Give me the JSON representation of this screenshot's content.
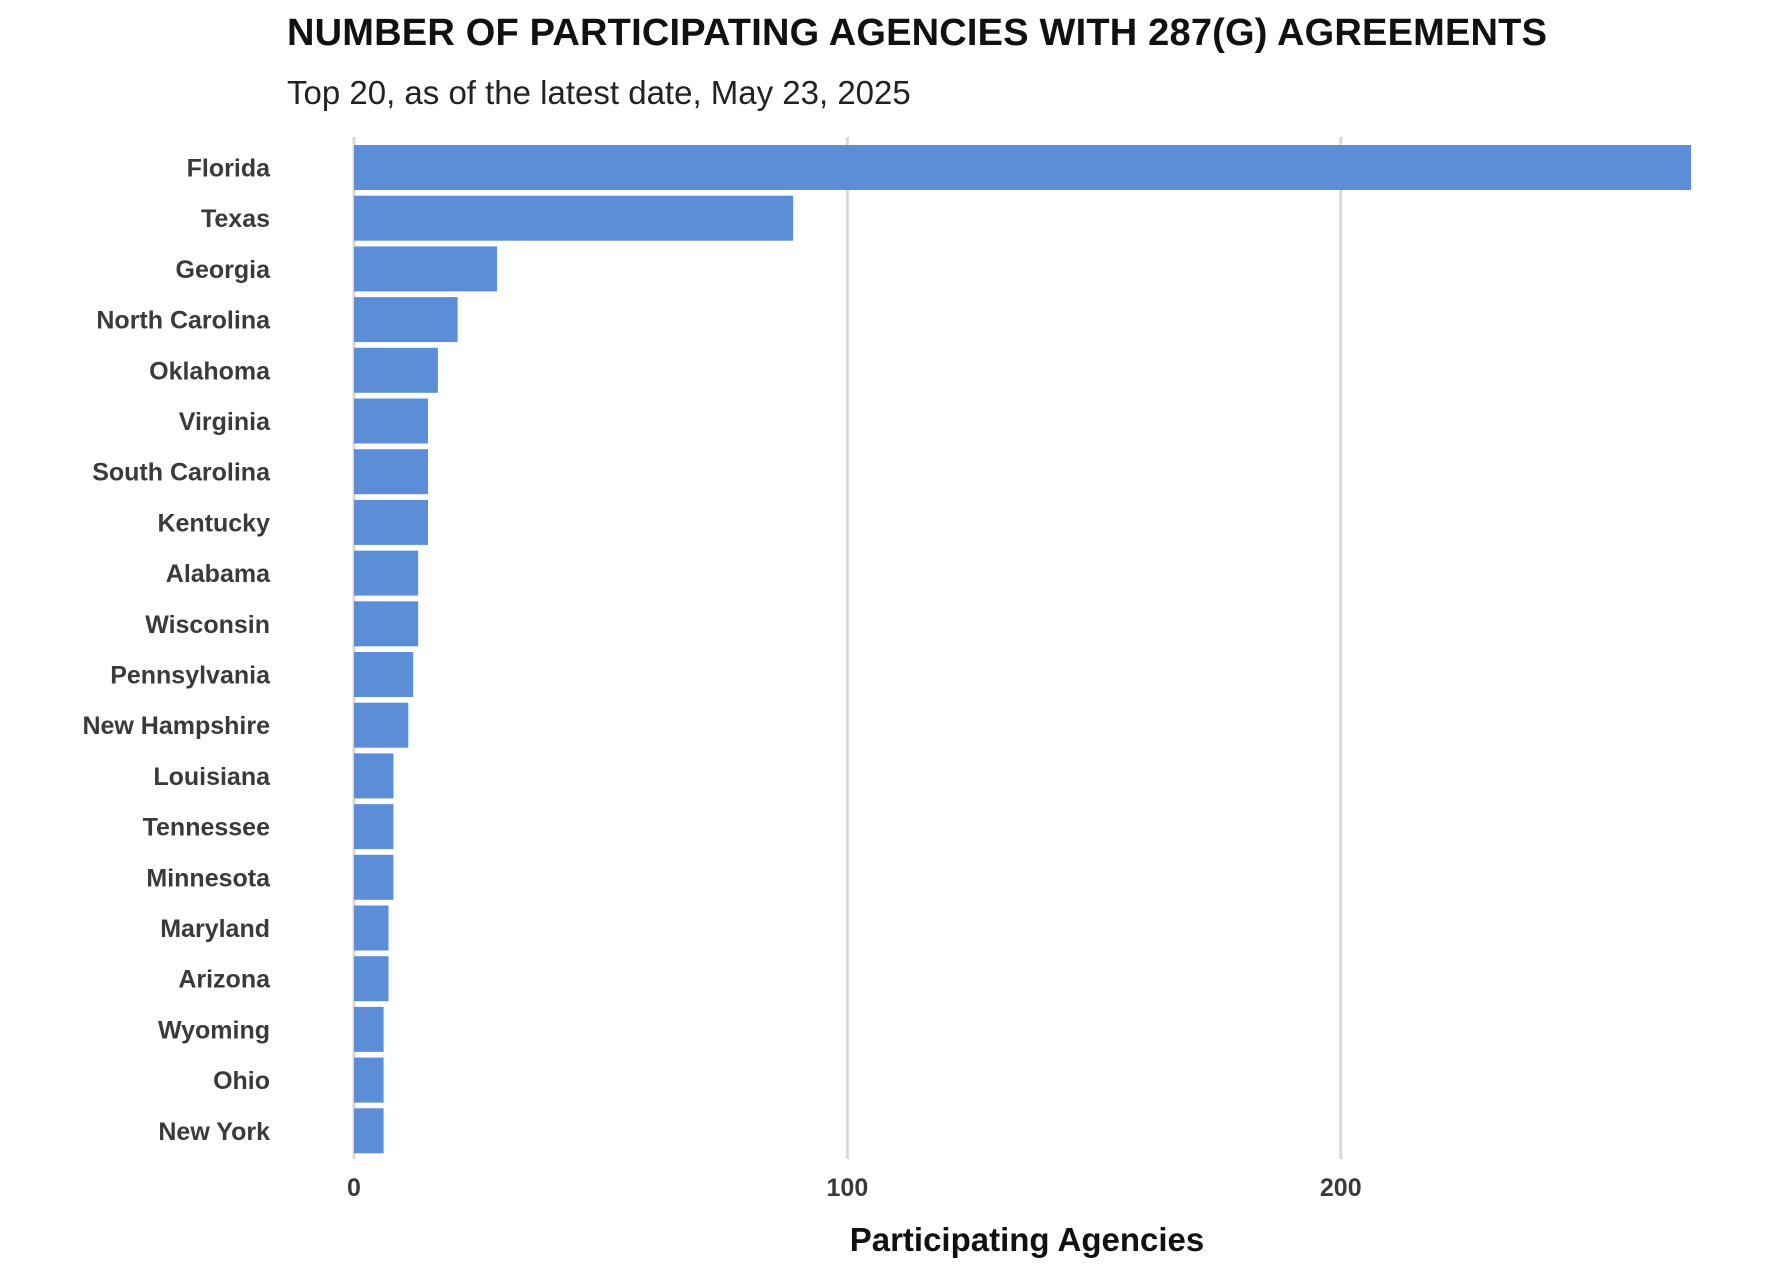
{
  "chart_data": {
    "type": "bar",
    "orientation": "horizontal",
    "title": "NUMBER OF PARTICIPATING AGENCIES WITH 287(G) AGREEMENTS",
    "subtitle": "Top 20, as of the latest date, May 23, 2025",
    "xlabel": "Participating Agencies",
    "ylabel": "",
    "xlim": [
      0,
      272
    ],
    "xticks": [
      0,
      100,
      200
    ],
    "grid": true,
    "legend": "none",
    "bar_color": "#5b8ed6",
    "categories": [
      "Florida",
      "Texas",
      "Georgia",
      "North Carolina",
      "Oklahoma",
      "Virginia",
      "South Carolina",
      "Kentucky",
      "Alabama",
      "Wisconsin",
      "Pennsylvania",
      "New Hampshire",
      "Louisiana",
      "Tennessee",
      "Minnesota",
      "Maryland",
      "Arizona",
      "Wyoming",
      "Ohio",
      "New York"
    ],
    "values": [
      271,
      89,
      29,
      21,
      17,
      15,
      15,
      15,
      13,
      13,
      12,
      11,
      8,
      8,
      8,
      7,
      7,
      6,
      6,
      6
    ]
  }
}
